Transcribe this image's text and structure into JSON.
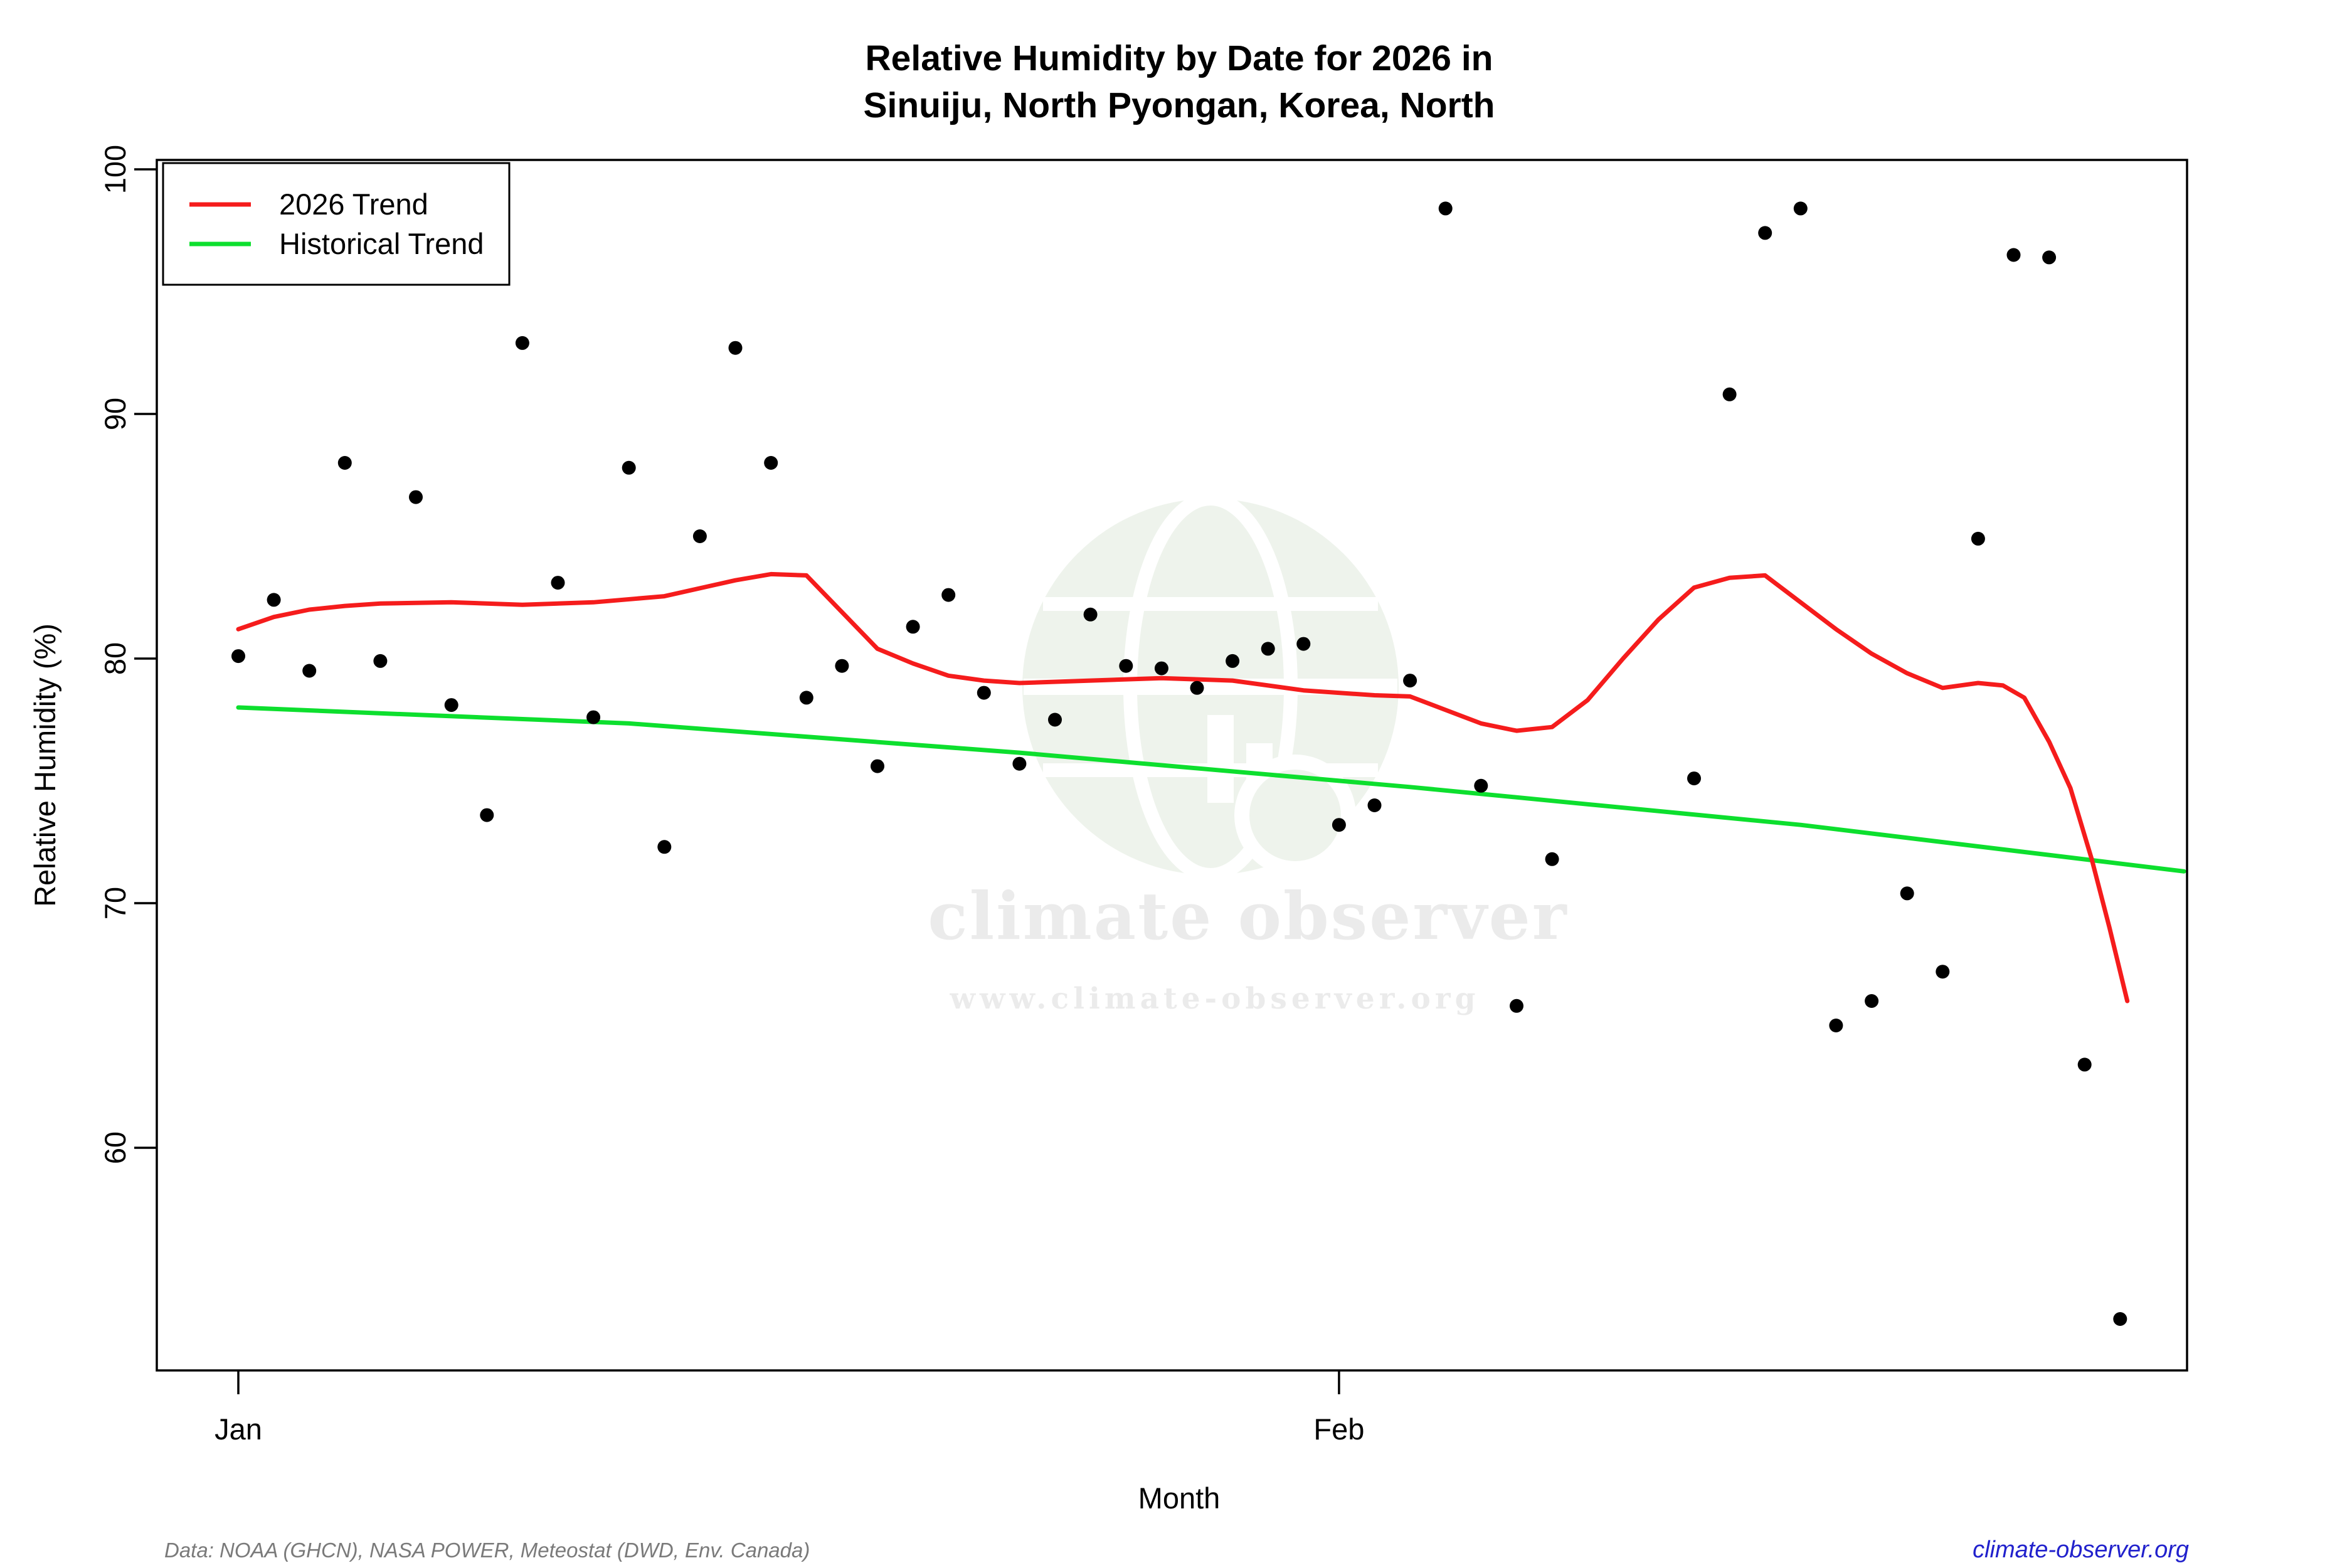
{
  "title": {
    "line1": "Relative Humidity by Date for 2026 in",
    "line2": "Sinuiju, North Pyongan, Korea, North"
  },
  "legend": {
    "items": [
      {
        "label": "2026 Trend",
        "color": "#f51c1c"
      },
      {
        "label": "Historical Trend",
        "color": "#0ddf2e"
      }
    ]
  },
  "axes": {
    "y_label": "Relative Humidity (%)",
    "x_label": "Month",
    "y_ticks": [
      100,
      90,
      80,
      70,
      60
    ],
    "x_ticks": [
      {
        "day": 1,
        "label": "Jan"
      },
      {
        "day": 32,
        "label": "Feb"
      }
    ]
  },
  "watermark": {
    "text": "climate observer",
    "subtext": "www.climate-observer.org",
    "text_color": "#ebebeb",
    "globe_color": "#eef3ec"
  },
  "footer": {
    "source": "Data: NOAA (GHCN), NASA POWER, Meteostat (DWD, Env. Canada)",
    "source_color": "#7a7a7a",
    "site": "climate-observer.org",
    "site_color": "#2121cc"
  },
  "chart_data": {
    "type": "scatter",
    "title": "Relative Humidity by Date for 2026 in Sinuiju, North Pyongan, Korea, North",
    "xlabel": "Month",
    "ylabel": "Relative Humidity (%)",
    "x_unit": "day (1 = Jan 1, 32 = Feb 1)",
    "xlim_days": [
      -1.3,
      55.9
    ],
    "ylim": [
      50.9,
      100.4
    ],
    "grid": false,
    "legend_position": "top-left",
    "points_color": "#000000",
    "points": [
      [
        1,
        80.1
      ],
      [
        2,
        82.4
      ],
      [
        3,
        79.5
      ],
      [
        4,
        88.0
      ],
      [
        5,
        79.9
      ],
      [
        6,
        86.6
      ],
      [
        7,
        78.1
      ],
      [
        8,
        73.6
      ],
      [
        9,
        92.9
      ],
      [
        10,
        83.1
      ],
      [
        11,
        77.6
      ],
      [
        12,
        87.8
      ],
      [
        13,
        72.3
      ],
      [
        14,
        85.0
      ],
      [
        15,
        92.7
      ],
      [
        16,
        88.0
      ],
      [
        17,
        78.4
      ],
      [
        18,
        79.7
      ],
      [
        19,
        75.6
      ],
      [
        20,
        81.3
      ],
      [
        21,
        82.6
      ],
      [
        22,
        78.6
      ],
      [
        23,
        75.7
      ],
      [
        24,
        77.5
      ],
      [
        25,
        81.8
      ],
      [
        26,
        79.7
      ],
      [
        27,
        79.6
      ],
      [
        28,
        78.8
      ],
      [
        29,
        79.9
      ],
      [
        30,
        80.4
      ],
      [
        31,
        80.6
      ],
      [
        32,
        73.2
      ],
      [
        33,
        74.0
      ],
      [
        34,
        79.1
      ],
      [
        35,
        98.4
      ],
      [
        36,
        74.8
      ],
      [
        37,
        65.8
      ],
      [
        38,
        71.8
      ],
      [
        42,
        75.1
      ],
      [
        43,
        90.8
      ],
      [
        44,
        97.4
      ],
      [
        45,
        98.4
      ],
      [
        46,
        65.0
      ],
      [
        47,
        66.0
      ],
      [
        48,
        70.4
      ],
      [
        49,
        67.2
      ],
      [
        50,
        84.9
      ],
      [
        51,
        96.5
      ],
      [
        52,
        96.4
      ],
      [
        53,
        63.4
      ],
      [
        54,
        53.0
      ]
    ],
    "series": [
      {
        "name": "2026 Trend",
        "color": "#f51c1c",
        "points": [
          [
            1,
            81.2
          ],
          [
            2,
            81.7
          ],
          [
            3,
            82.0
          ],
          [
            4,
            82.15
          ],
          [
            5,
            82.25
          ],
          [
            7,
            82.3
          ],
          [
            9,
            82.2
          ],
          [
            11,
            82.3
          ],
          [
            13,
            82.55
          ],
          [
            15,
            83.2
          ],
          [
            16,
            83.45
          ],
          [
            17,
            83.4
          ],
          [
            18,
            81.9
          ],
          [
            19,
            80.4
          ],
          [
            20,
            79.8
          ],
          [
            21,
            79.3
          ],
          [
            22,
            79.1
          ],
          [
            23,
            79.0
          ],
          [
            25,
            79.1
          ],
          [
            27,
            79.2
          ],
          [
            29,
            79.1
          ],
          [
            31,
            78.7
          ],
          [
            33,
            78.5
          ],
          [
            34,
            78.45
          ],
          [
            35,
            77.9
          ],
          [
            36,
            77.35
          ],
          [
            37,
            77.05
          ],
          [
            38,
            77.2
          ],
          [
            39,
            78.3
          ],
          [
            40,
            80.0
          ],
          [
            41,
            81.6
          ],
          [
            42,
            82.9
          ],
          [
            43,
            83.3
          ],
          [
            44,
            83.4
          ],
          [
            45,
            82.3
          ],
          [
            46,
            81.2
          ],
          [
            47,
            80.2
          ],
          [
            48,
            79.4
          ],
          [
            49,
            78.8
          ],
          [
            50,
            79.0
          ],
          [
            50.7,
            78.9
          ],
          [
            51.3,
            78.4
          ],
          [
            52,
            76.6
          ],
          [
            52.6,
            74.7
          ],
          [
            53.2,
            71.8
          ],
          [
            53.7,
            69.0
          ],
          [
            54.2,
            66.0
          ]
        ]
      },
      {
        "name": "Historical Trend",
        "color": "#0ddf2e",
        "points": [
          [
            1,
            78.0
          ],
          [
            12,
            77.35
          ],
          [
            23,
            76.15
          ],
          [
            34,
            74.75
          ],
          [
            45,
            73.2
          ],
          [
            55.8,
            71.3
          ]
        ]
      }
    ]
  }
}
